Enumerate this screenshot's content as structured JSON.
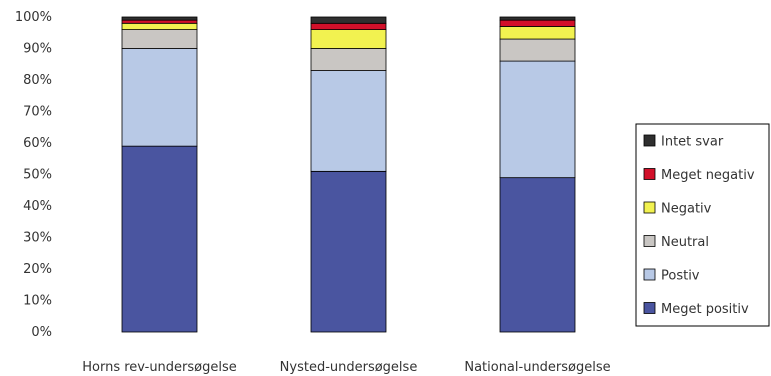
{
  "chart_data": {
    "type": "bar",
    "stacked": true,
    "title": "",
    "xlabel": "",
    "ylabel": "",
    "ylim": [
      0,
      100
    ],
    "y_ticks": [
      "0%",
      "10%",
      "20%",
      "30%",
      "40%",
      "50%",
      "60%",
      "70%",
      "80%",
      "90%",
      "100%"
    ],
    "categories": [
      "Horns rev-undersøgelse",
      "Nysted-undersøgelse",
      "National-undersøgelse"
    ],
    "grid": false,
    "legend_position": "right",
    "series": [
      {
        "name": "Meget positiv",
        "color": "#4a55a0",
        "values": [
          59,
          51,
          49
        ]
      },
      {
        "name": "Postiv",
        "color": "#b8c9e6",
        "values": [
          31,
          32,
          37
        ]
      },
      {
        "name": "Neutral",
        "color": "#c9c6c3",
        "values": [
          6,
          7,
          7
        ]
      },
      {
        "name": "Negativ",
        "color": "#f2f250",
        "values": [
          2,
          6,
          4
        ]
      },
      {
        "name": "Meget negativ",
        "color": "#d2102a",
        "values": [
          1,
          2,
          2
        ]
      },
      {
        "name": "Intet svar",
        "color": "#2f2f2f",
        "values": [
          1,
          2,
          1
        ]
      }
    ]
  }
}
